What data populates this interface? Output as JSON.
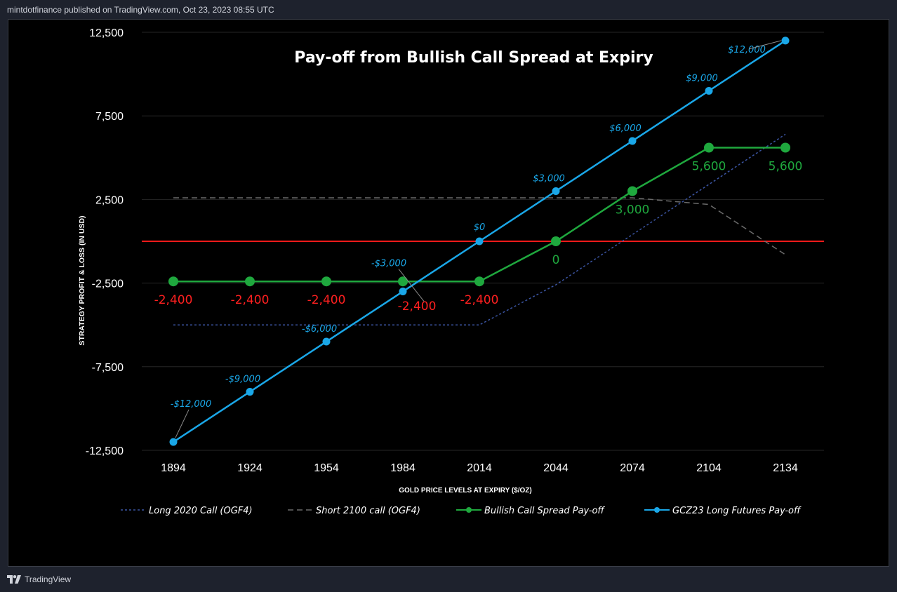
{
  "header": {
    "publisher_text": "mintdotfinance published on TradingView.com, Oct 23, 2023 08:55 UTC"
  },
  "footer": {
    "brand": "TradingView",
    "logo_icon": "tradingview-logo-icon"
  },
  "colors": {
    "background": "#000000",
    "futures": "#1aa7e8",
    "spread": "#1fa83e",
    "zero_line": "#ff1a1a",
    "long_call": "#3b55a3",
    "short_call": "#6b6b6b",
    "loss_label": "#ff2020",
    "text": "#ffffff",
    "grid": "#262626"
  },
  "chart_data": {
    "type": "line",
    "title": "Pay-off from Bullish Call Spread at Expiry",
    "xlabel": "GOLD PRICE LEVELS AT EXPIRY ($/OZ)",
    "ylabel": "STRATEGY PROFIT & LOSS (IN USD)",
    "categories": [
      "1894",
      "1924",
      "1954",
      "1984",
      "2014",
      "2044",
      "2074",
      "2104",
      "2134"
    ],
    "ylim": [
      -12500,
      12500
    ],
    "yticks": [
      12500,
      7500,
      2500,
      -2500,
      -7500,
      -12500
    ],
    "ytick_labels": [
      "12,500",
      "7,500",
      "2,500",
      "-2,500",
      "-7,500",
      "-12,500"
    ],
    "grid": true,
    "zero_line": 0,
    "legend_position": "bottom",
    "series": [
      {
        "name": "Long 2020 Call (OGF4)",
        "style": "dotted",
        "markers": false,
        "values": [
          -5000,
          -5000,
          -5000,
          -5000,
          -5000,
          -2600,
          400,
          3400,
          6400
        ]
      },
      {
        "name": "Short 2100 call (OGF4)",
        "style": "dashed",
        "markers": false,
        "values": [
          2600,
          2600,
          2600,
          2600,
          2600,
          2600,
          2600,
          2200,
          -800
        ]
      },
      {
        "name": "Bullish Call Spread Pay-off",
        "style": "solid",
        "markers": true,
        "values": [
          -2400,
          -2400,
          -2400,
          -2400,
          -2400,
          0,
          3000,
          5600,
          5600
        ],
        "labels": [
          "-2,400",
          "-2,400",
          "-2,400",
          "-2,400",
          "-2,400",
          "0",
          "3,000",
          "5,600",
          "5,600"
        ]
      },
      {
        "name": "GCZ23 Long Futures Pay-off",
        "style": "solid",
        "markers": true,
        "values": [
          -12000,
          -9000,
          -6000,
          -3000,
          0,
          3000,
          6000,
          9000,
          12000
        ],
        "labels": [
          "-$12,000",
          "-$9,000",
          "-$6,000",
          "-$3,000",
          "$0",
          "$3,000",
          "$6,000",
          "$9,000",
          "$12,000"
        ]
      }
    ]
  }
}
